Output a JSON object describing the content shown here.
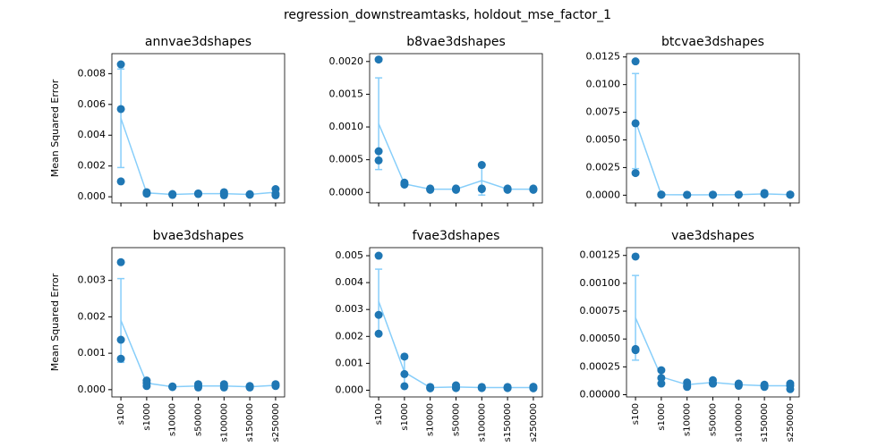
{
  "title": "regression_downstreamtasks, holdout_mse_factor_1",
  "chart_data": [
    {
      "type": "line",
      "title": "annvae3dshapes",
      "y_label": "Mean Squared Error",
      "categories": [
        null,
        null,
        null,
        null,
        null,
        null,
        null
      ],
      "line_color": "#87cefa",
      "point_color": "#1f77b4",
      "values": [
        0.0051,
        0.00025,
        0.00015,
        0.0002,
        0.0002,
        0.00015,
        0.0003
      ],
      "errors": [
        0.0032,
        5e-05,
        3e-05,
        3e-05,
        0.0001,
        3e-05,
        0.0002
      ],
      "points": [
        [
          0.0086,
          0.0057,
          0.001
        ],
        [
          0.0003,
          0.00025,
          0.0002
        ],
        [
          0.00015,
          0.00012,
          0.00018
        ],
        [
          0.0002,
          0.00022,
          0.00018
        ],
        [
          0.0003,
          0.0001,
          0.0002
        ],
        [
          0.00015,
          0.00013,
          0.00017
        ],
        [
          0.0005,
          0.0001,
          0.0002
        ]
      ],
      "ylim": [
        -0.0004,
        0.0093
      ],
      "yticks": [
        {
          "value": 0,
          "label": "0.000"
        },
        {
          "value": 0.002,
          "label": "0.002"
        },
        {
          "value": 0.004,
          "label": "0.004"
        },
        {
          "value": 0.006,
          "label": "0.006"
        },
        {
          "value": 0.008,
          "label": "0.008"
        }
      ]
    },
    {
      "type": "line",
      "title": "b8vae3dshapes",
      "categories": [
        null,
        null,
        null,
        null,
        null,
        null,
        null
      ],
      "line_color": "#87cefa",
      "point_color": "#1f77b4",
      "values": [
        0.00105,
        0.00013,
        5e-05,
        5e-05,
        0.00018,
        5e-05,
        5e-05
      ],
      "errors": [
        0.0007,
        2e-05,
        1e-05,
        1e-05,
        0.00022,
        1e-05,
        1e-05
      ],
      "points": [
        [
          0.00203,
          0.00063,
          0.00049
        ],
        [
          0.00015,
          0.00012,
          0.00013
        ],
        [
          5e-05,
          4e-05,
          6e-05
        ],
        [
          5e-05,
          4e-05,
          6e-05
        ],
        [
          0.00042,
          6e-05,
          5e-05
        ],
        [
          5e-05,
          4e-05,
          6e-05
        ],
        [
          5e-05,
          4e-05,
          6e-05
        ]
      ],
      "ylim": [
        -0.00016,
        0.00212
      ],
      "yticks": [
        {
          "value": 0,
          "label": "0.0000"
        },
        {
          "value": 0.0005,
          "label": "0.0005"
        },
        {
          "value": 0.001,
          "label": "0.0010"
        },
        {
          "value": 0.0015,
          "label": "0.0015"
        },
        {
          "value": 0.002,
          "label": "0.0020"
        }
      ]
    },
    {
      "type": "line",
      "title": "btcvae3dshapes",
      "categories": [
        null,
        null,
        null,
        null,
        null,
        null,
        null
      ],
      "line_color": "#87cefa",
      "point_color": "#1f77b4",
      "values": [
        0.0067,
        5e-05,
        3e-05,
        4e-05,
        5e-05,
        0.00012,
        5e-05
      ],
      "errors": [
        0.0043,
        2e-05,
        1e-05,
        1e-05,
        2e-05,
        0.0001,
        2e-05
      ],
      "points": [
        [
          0.0121,
          0.0065,
          0.002
        ],
        [
          5e-05,
          4e-05,
          6e-05
        ],
        [
          3e-05,
          2e-05,
          4e-05
        ],
        [
          4e-05,
          3e-05,
          5e-05
        ],
        [
          5e-05,
          4e-05,
          6e-05
        ],
        [
          0.0002,
          8e-05,
          8e-05
        ],
        [
          5e-05,
          4e-05,
          6e-05
        ]
      ],
      "ylim": [
        -0.0007,
        0.0128
      ],
      "yticks": [
        {
          "value": 0,
          "label": "0.0000"
        },
        {
          "value": 0.0025,
          "label": "0.0025"
        },
        {
          "value": 0.005,
          "label": "0.0050"
        },
        {
          "value": 0.0075,
          "label": "0.0075"
        },
        {
          "value": 0.01,
          "label": "0.0100"
        },
        {
          "value": 0.0125,
          "label": "0.0125"
        }
      ]
    },
    {
      "type": "line",
      "title": "bvae3dshapes",
      "y_label": "Mean Squared Error",
      "categories": [
        "s100",
        "s1000",
        "s10000",
        "s50000",
        "s100000",
        "s150000",
        "s250000"
      ],
      "line_color": "#87cefa",
      "point_color": "#1f77b4",
      "values": [
        0.0019,
        0.00018,
        8e-05,
        0.0001,
        0.0001,
        8e-05,
        0.00012
      ],
      "errors": [
        0.00115,
        7e-05,
        2e-05,
        4e-05,
        4e-05,
        2e-05,
        3e-05
      ],
      "points": [
        [
          0.0035,
          0.00137,
          0.00085
        ],
        [
          0.00025,
          0.0001,
          0.00018
        ],
        [
          8e-05,
          7e-05,
          9e-05
        ],
        [
          0.00015,
          6e-05,
          0.0001
        ],
        [
          0.00015,
          6e-05,
          0.0001
        ],
        [
          0.0001,
          6e-05,
          8e-05
        ],
        [
          0.00015,
          0.0001,
          0.00012
        ]
      ],
      "ylim": [
        -0.0002,
        0.0039
      ],
      "yticks": [
        {
          "value": 0,
          "label": "0.000"
        },
        {
          "value": 0.001,
          "label": "0.001"
        },
        {
          "value": 0.002,
          "label": "0.002"
        },
        {
          "value": 0.003,
          "label": "0.003"
        }
      ]
    },
    {
      "type": "line",
      "title": "fvae3dshapes",
      "categories": [
        "s100",
        "s1000",
        "s10000",
        "s50000",
        "s100000",
        "s150000",
        "s250000"
      ],
      "line_color": "#87cefa",
      "point_color": "#1f77b4",
      "values": [
        0.0033,
        0.00067,
        0.0001,
        0.00012,
        0.0001,
        0.0001,
        0.0001
      ],
      "errors": [
        0.0012,
        0.0005,
        3e-05,
        5e-05,
        2e-05,
        2e-05,
        3e-05
      ],
      "points": [
        [
          0.005,
          0.0028,
          0.0021
        ],
        [
          0.00125,
          0.0006,
          0.00015
        ],
        [
          0.0001,
          7e-05,
          0.00012
        ],
        [
          0.00018,
          8e-05,
          0.0001
        ],
        [
          0.0001,
          8e-05,
          0.00012
        ],
        [
          0.0001,
          8e-05,
          0.00012
        ],
        [
          0.0001,
          7e-05,
          0.00013
        ]
      ],
      "ylim": [
        -0.00025,
        0.0053
      ],
      "yticks": [
        {
          "value": 0,
          "label": "0.000"
        },
        {
          "value": 0.001,
          "label": "0.001"
        },
        {
          "value": 0.002,
          "label": "0.002"
        },
        {
          "value": 0.003,
          "label": "0.003"
        },
        {
          "value": 0.004,
          "label": "0.004"
        },
        {
          "value": 0.005,
          "label": "0.005"
        }
      ]
    },
    {
      "type": "line",
      "title": "vae3dshapes",
      "categories": [
        "s100",
        "s1000",
        "s10000",
        "s50000",
        "s100000",
        "s150000",
        "s250000"
      ],
      "line_color": "#87cefa",
      "point_color": "#1f77b4",
      "values": [
        0.00069,
        0.00016,
        9e-05,
        0.00011,
        9e-05,
        8e-05,
        8e-05
      ],
      "errors": [
        0.00038,
        5e-05,
        2e-05,
        2e-05,
        1e-05,
        1e-05,
        2e-05
      ],
      "points": [
        [
          0.00124,
          0.00041,
          0.0004
        ],
        [
          0.00022,
          0.00015,
          0.0001
        ],
        [
          0.00011,
          8e-05,
          7e-05
        ],
        [
          0.00013,
          0.0001,
          0.0001
        ],
        [
          0.0001,
          8e-05,
          9e-05
        ],
        [
          8e-05,
          7e-05,
          9e-05
        ],
        [
          0.0001,
          5e-05,
          8e-05
        ]
      ],
      "ylim": [
        -2e-05,
        0.00132
      ],
      "yticks": [
        {
          "value": 0,
          "label": "0.00000"
        },
        {
          "value": 0.00025,
          "label": "0.00025"
        },
        {
          "value": 0.0005,
          "label": "0.00050"
        },
        {
          "value": 0.00075,
          "label": "0.00075"
        },
        {
          "value": 0.001,
          "label": "0.00100"
        },
        {
          "value": 0.00125,
          "label": "0.00125"
        }
      ]
    }
  ]
}
